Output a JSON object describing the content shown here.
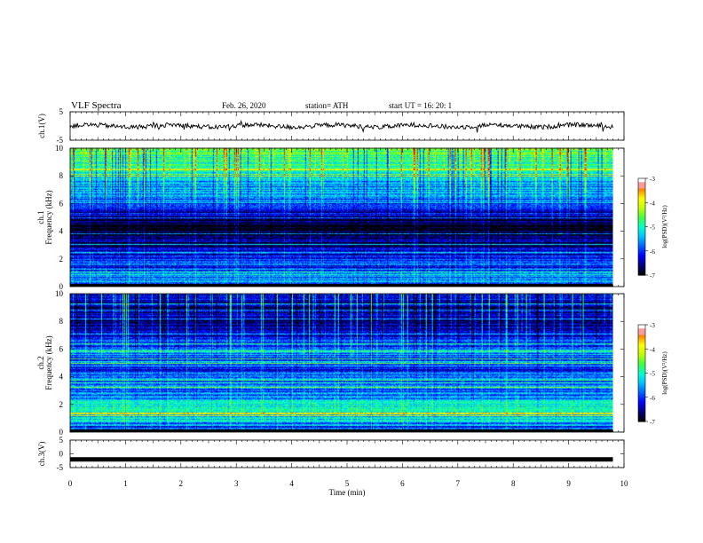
{
  "header": {
    "title": "VLF  Spectra",
    "date": "Feb. 26, 2020",
    "station": "station= ATH",
    "start_ut": "start  UT  =     16: 20: 1"
  },
  "colors": {
    "colormap": [
      "#000000",
      "#000080",
      "#0000ff",
      "#0060ff",
      "#00c0ff",
      "#00ffd0",
      "#40ff40",
      "#c0ff00",
      "#ffff00",
      "#ff8000",
      "#ff0000",
      "#ff9a9a",
      "#ffffff"
    ]
  },
  "chart_data": [
    {
      "type": "line",
      "panel": "ch1-voltage",
      "ylabel": "ch.1(V)",
      "ylim": [
        -5,
        5
      ],
      "yticks": [
        "5",
        "-5"
      ],
      "xlim": [
        0,
        10
      ],
      "series": [
        {
          "mean": 0,
          "variation": "small-noise",
          "x_end": 9.8
        }
      ]
    },
    {
      "type": "heatmap",
      "panel": "ch1-spectrogram",
      "ylabel": "Frequency  (kHz)",
      "channel_label": "ch.1",
      "ylim": [
        0,
        10
      ],
      "yticks": [
        "0",
        "2",
        "4",
        "6",
        "8",
        "10"
      ],
      "xlim": [
        0,
        10
      ],
      "x_end": 9.8,
      "colorbar": {
        "label": "log(PSD)(V²/Hz)",
        "range": [
          -7,
          -3
        ],
        "ticks": [
          "-3",
          "-4",
          "-5",
          "-6",
          "-7"
        ]
      },
      "band_profile": [
        {
          "f": 0.0,
          "v": -6.7
        },
        {
          "f": 0.3,
          "v": -5.6
        },
        {
          "f": 0.6,
          "v": -5.6
        },
        {
          "f": 1.0,
          "v": -5.9
        },
        {
          "f": 1.5,
          "v": -6.1
        },
        {
          "f": 2.0,
          "v": -6.0
        },
        {
          "f": 2.5,
          "v": -6.3
        },
        {
          "f": 3.0,
          "v": -6.6
        },
        {
          "f": 3.5,
          "v": -6.7
        },
        {
          "f": 4.0,
          "v": -6.9
        },
        {
          "f": 4.5,
          "v": -6.9
        },
        {
          "f": 5.0,
          "v": -6.5
        },
        {
          "f": 5.5,
          "v": -6.2
        },
        {
          "f": 6.0,
          "v": -6.0
        },
        {
          "f": 6.3,
          "v": -5.7
        },
        {
          "f": 6.6,
          "v": -5.2
        },
        {
          "f": 7.0,
          "v": -5.6
        },
        {
          "f": 8.0,
          "v": -5.2
        },
        {
          "f": 9.0,
          "v": -4.9
        },
        {
          "f": 10.0,
          "v": -4.6
        }
      ]
    },
    {
      "type": "heatmap",
      "panel": "ch2-spectrogram",
      "ylabel": "Frequency  (kHz)",
      "channel_label": "ch.2",
      "ylim": [
        0,
        10
      ],
      "yticks": [
        "0",
        "2",
        "4",
        "6",
        "8",
        "10"
      ],
      "xlim": [
        0,
        10
      ],
      "x_end": 9.8,
      "colorbar": {
        "label": "log(PSD)(V²/Hz)",
        "range": [
          -7,
          -3
        ],
        "ticks": [
          "-3",
          "-4",
          "-5",
          "-6",
          "-7"
        ]
      },
      "band_profile": [
        {
          "f": 0.0,
          "v": -6.3
        },
        {
          "f": 0.5,
          "v": -5.6
        },
        {
          "f": 1.0,
          "v": -5.2
        },
        {
          "f": 1.5,
          "v": -4.9
        },
        {
          "f": 2.0,
          "v": -5.2
        },
        {
          "f": 2.5,
          "v": -5.6
        },
        {
          "f": 3.0,
          "v": -5.8
        },
        {
          "f": 3.5,
          "v": -5.7
        },
        {
          "f": 4.0,
          "v": -5.9
        },
        {
          "f": 4.5,
          "v": -6.0
        },
        {
          "f": 5.0,
          "v": -5.5
        },
        {
          "f": 5.5,
          "v": -6.0
        },
        {
          "f": 6.0,
          "v": -5.8
        },
        {
          "f": 6.5,
          "v": -6.0
        },
        {
          "f": 7.0,
          "v": -6.3
        },
        {
          "f": 8.0,
          "v": -6.6
        },
        {
          "f": 9.0,
          "v": -6.5
        },
        {
          "f": 10.0,
          "v": -6.2
        }
      ]
    },
    {
      "type": "line",
      "panel": "ch3-voltage",
      "ylabel": "ch.3(V)",
      "xlabel": "Time  (min)",
      "ylim": [
        -5,
        5
      ],
      "yticks": [
        "5",
        "0",
        "-5"
      ],
      "xlim": [
        0,
        10
      ],
      "xticks": [
        "0",
        "1",
        "2",
        "3",
        "4",
        "5",
        "6",
        "7",
        "8",
        "9",
        "10"
      ],
      "series": [
        {
          "mean": -2,
          "variation": "flat",
          "x_end": 9.8
        }
      ]
    }
  ]
}
